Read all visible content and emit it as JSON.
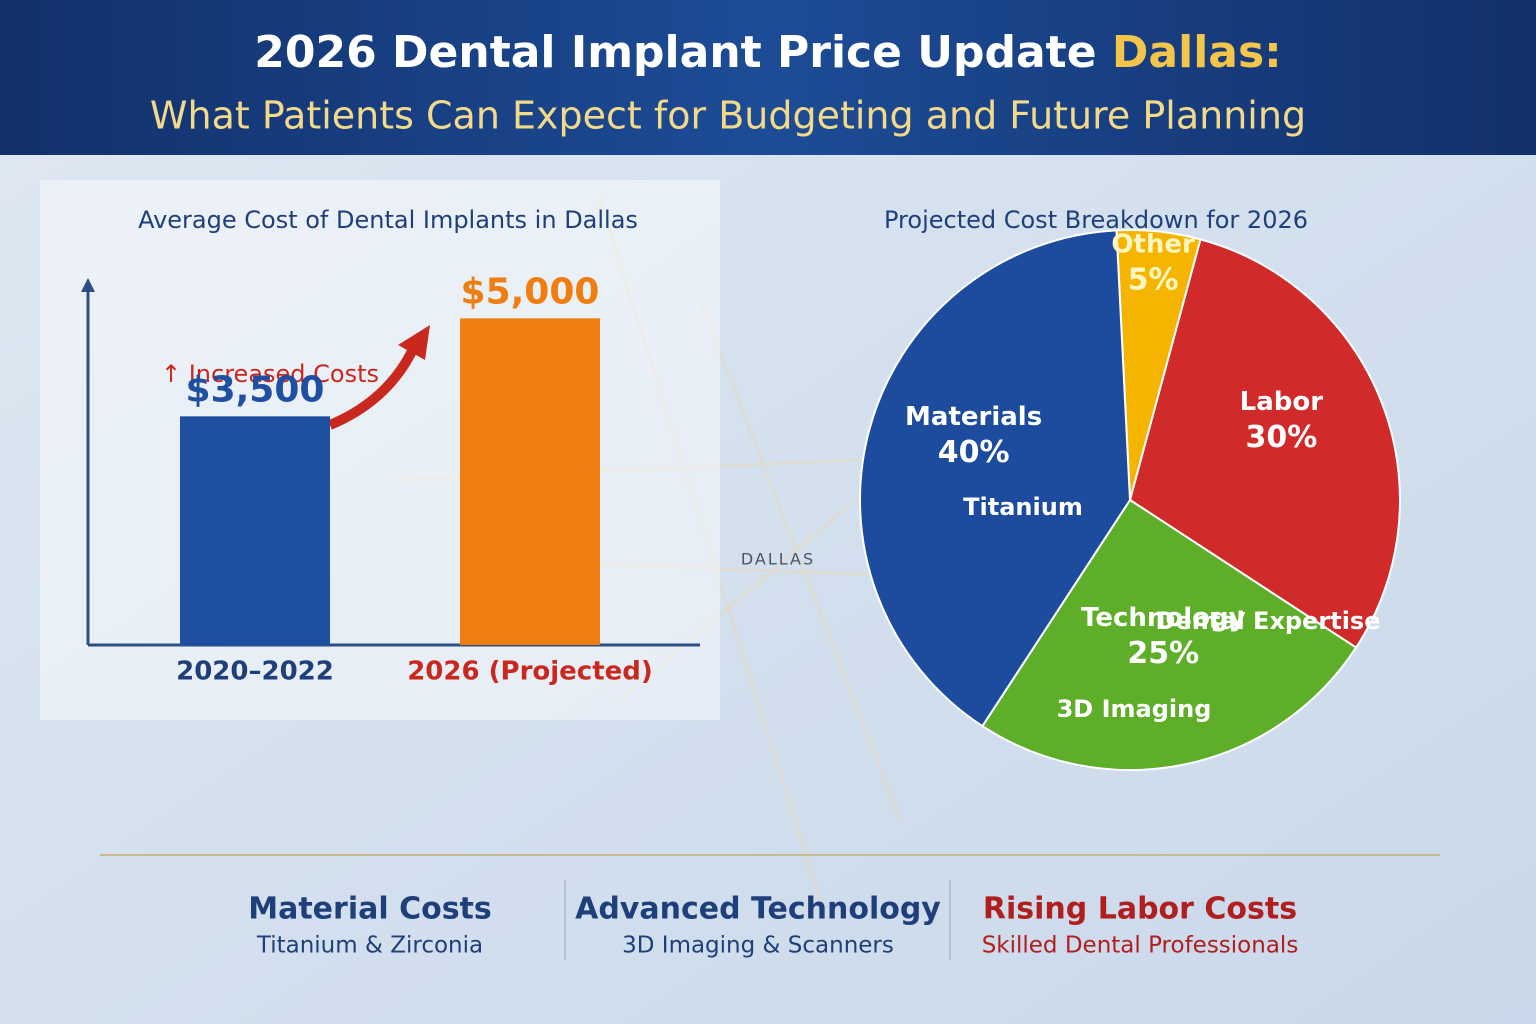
{
  "header": {
    "title": "2026 Dental Implant Price Update",
    "title_highlight": "Dallas:",
    "subtitle": "What Patients Can Expect for Budgeting and Future Planning"
  },
  "background": {
    "map_label": "DALLAS"
  },
  "chart_data": [
    {
      "type": "bar",
      "title": "Average Cost of Dental Implants in Dallas",
      "categories": [
        "2020–2022",
        "2026 (Projected)"
      ],
      "category_colors": [
        "#1f3f7a",
        "#c8281e"
      ],
      "values": [
        3500,
        5000
      ],
      "value_labels": [
        "$3,500",
        "$5,000"
      ],
      "colors": [
        "#1f4fa0",
        "#f07d10"
      ],
      "ylim": [
        0,
        6000
      ],
      "annotation": "↑ Increased Costs"
    },
    {
      "type": "pie",
      "title": "Projected Cost Breakdown for 2026",
      "categories": [
        "Other",
        "Labor",
        "Technology",
        "Materials"
      ],
      "values": [
        5,
        30,
        25,
        40
      ],
      "value_labels": [
        "5%",
        "30%",
        "25%",
        "40%"
      ],
      "colors": [
        "#f5b400",
        "#d02a2a",
        "#5fae2a",
        "#1d4c9e"
      ],
      "label_colors": [
        "#fff6c0",
        "#ffffff",
        "#ffffff",
        "#ffffff"
      ],
      "sublabels": [
        "Dental Expertise",
        "3D Imaging",
        "Titanium"
      ]
    }
  ],
  "footer": [
    {
      "title": "Material Costs",
      "subtitle": "Titanium & Zirconia",
      "color": "#1f3f7a"
    },
    {
      "title": "Advanced Technology",
      "subtitle": "3D Imaging & Scanners",
      "color": "#1f3f7a"
    },
    {
      "title": "Rising Labor Costs",
      "subtitle": "Skilled Dental Professionals",
      "color": "#b01e1e"
    }
  ]
}
